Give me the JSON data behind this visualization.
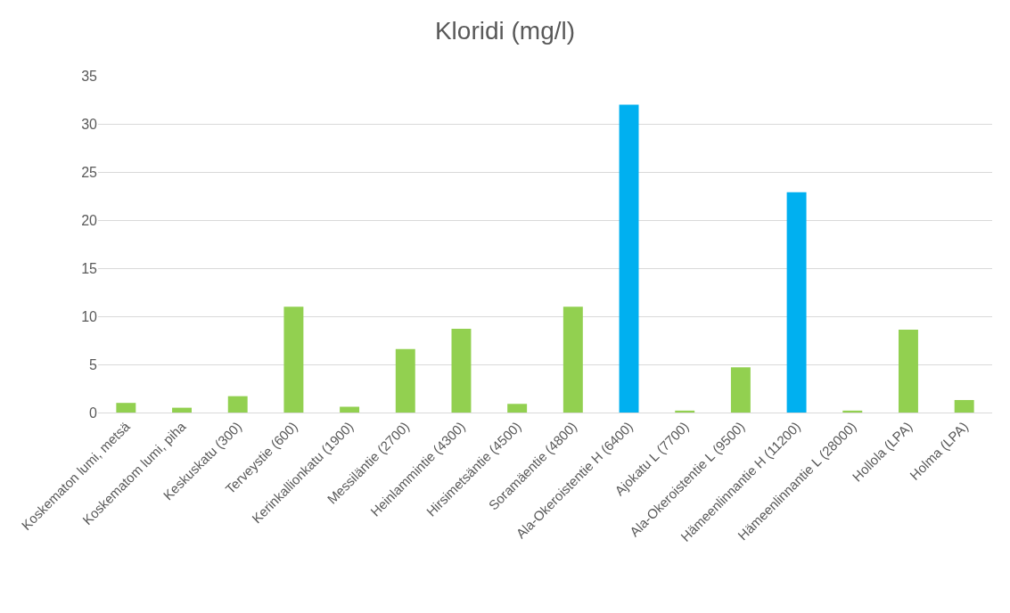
{
  "chart_data": {
    "type": "bar",
    "title": "Kloridi (mg/l)",
    "categories": [
      "Koskematon lumi, metsä",
      "Koskematom lumi, piha",
      "Keskuskatu (300)",
      "Terveystie (600)",
      "Kerinkallionkatu (1900)",
      "Messiläntie (2700)",
      "Heinlammintie (4300)",
      "Hirsimetsäntie (4500)",
      "Soramäentie (4800)",
      "Ala-Okeroistentie H (6400)",
      "Ajokatu L (7700)",
      "Ala-Okeroistentie L (9500)",
      "Hämeenlinnantie H (11200)",
      "Hämeenlinnantie L (28000)",
      "Hollola (LPA)",
      "Holma (LPA)"
    ],
    "values": [
      1.0,
      0.5,
      1.7,
      11.0,
      0.6,
      6.6,
      8.7,
      0.9,
      11.0,
      32.0,
      0.2,
      4.7,
      22.9,
      0.2,
      8.6,
      1.3
    ],
    "colors": [
      "#92d050",
      "#92d050",
      "#92d050",
      "#92d050",
      "#92d050",
      "#92d050",
      "#92d050",
      "#92d050",
      "#92d050",
      "#00b0f0",
      "#92d050",
      "#92d050",
      "#00b0f0",
      "#92d050",
      "#92d050",
      "#92d050"
    ],
    "ylim": [
      0,
      35
    ],
    "yticks": [
      0,
      5,
      10,
      15,
      20,
      25,
      30,
      35
    ],
    "grid": "y"
  }
}
